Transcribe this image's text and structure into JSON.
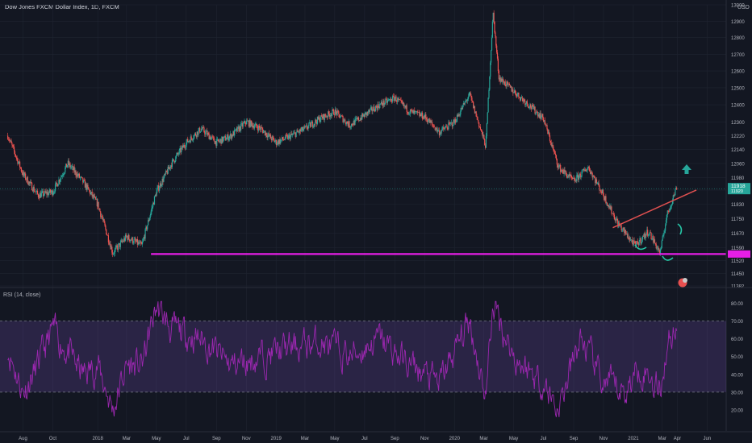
{
  "header": {
    "title": "Dow Jones FXCM Dollar Index, 1D, FXCM",
    "currency": "USD",
    "rsi_label": "RSI (14, close)"
  },
  "colors": {
    "background": "#131722",
    "grid": "#1f2431",
    "axis_text": "#b2b5be",
    "candle_up": "#26a69a",
    "candle_down": "#ef5350",
    "support_line": "#e61ee6",
    "trend_line": "#e05050",
    "rsi_line": "#9c27b0",
    "rsi_band": "rgba(126,87,194,0.22)",
    "current_price_bg": "#26a69a",
    "arrow": "#26a69a"
  },
  "chart_data": [
    {
      "type": "candlestick",
      "title": "Dow Jones FXCM Dollar Index, 1D, FXCM",
      "y_ticks": [
        13000,
        12900,
        12800,
        12700,
        12600,
        12500,
        12400,
        12300,
        12220,
        12140,
        12060,
        11980,
        11910,
        11830,
        11750,
        11670,
        11590,
        11520,
        11450,
        11382
      ],
      "ylim": [
        11382,
        13000
      ],
      "y_scale": "log",
      "x_ticks": [
        "Aug",
        "Oct",
        "2018",
        "Mar",
        "May",
        "Jul",
        "Sep",
        "Nov",
        "2019",
        "Mar",
        "May",
        "Jul",
        "Sep",
        "Nov",
        "2020",
        "Mar",
        "May",
        "Jul",
        "Sep",
        "Nov",
        "2021",
        "Mar",
        "Apr",
        "Jun"
      ],
      "path_points": [
        {
          "x": "2017-07-01",
          "close": 12220
        },
        {
          "x": "2017-08-01",
          "close": 12000
        },
        {
          "x": "2017-09-01",
          "close": 11880
        },
        {
          "x": "2017-10-01",
          "close": 11900
        },
        {
          "x": "2017-11-01",
          "close": 12060
        },
        {
          "x": "2017-12-01",
          "close": 11960
        },
        {
          "x": "2018-01-01",
          "close": 11830
        },
        {
          "x": "2018-02-01",
          "close": 11560
        },
        {
          "x": "2018-03-01",
          "close": 11650
        },
        {
          "x": "2018-04-01",
          "close": 11600
        },
        {
          "x": "2018-05-01",
          "close": 11900
        },
        {
          "x": "2018-06-01",
          "close": 12060
        },
        {
          "x": "2018-07-01",
          "close": 12180
        },
        {
          "x": "2018-08-01",
          "close": 12260
        },
        {
          "x": "2018-09-01",
          "close": 12180
        },
        {
          "x": "2018-10-01",
          "close": 12220
        },
        {
          "x": "2018-11-01",
          "close": 12300
        },
        {
          "x": "2018-12-01",
          "close": 12260
        },
        {
          "x": "2019-01-01",
          "close": 12180
        },
        {
          "x": "2019-02-01",
          "close": 12220
        },
        {
          "x": "2019-03-01",
          "close": 12260
        },
        {
          "x": "2019-04-01",
          "close": 12320
        },
        {
          "x": "2019-05-01",
          "close": 12360
        },
        {
          "x": "2019-06-01",
          "close": 12280
        },
        {
          "x": "2019-07-01",
          "close": 12340
        },
        {
          "x": "2019-08-01",
          "close": 12400
        },
        {
          "x": "2019-09-01",
          "close": 12440
        },
        {
          "x": "2019-10-01",
          "close": 12360
        },
        {
          "x": "2019-11-01",
          "close": 12330
        },
        {
          "x": "2019-12-01",
          "close": 12240
        },
        {
          "x": "2020-01-01",
          "close": 12300
        },
        {
          "x": "2020-02-01",
          "close": 12460
        },
        {
          "x": "2020-03-05",
          "close": 12160
        },
        {
          "x": "2020-03-20",
          "close": 12950
        },
        {
          "x": "2020-04-01",
          "close": 12560
        },
        {
          "x": "2020-05-01",
          "close": 12480
        },
        {
          "x": "2020-06-01",
          "close": 12400
        },
        {
          "x": "2020-07-01",
          "close": 12320
        },
        {
          "x": "2020-08-01",
          "close": 12040
        },
        {
          "x": "2020-09-01",
          "close": 11960
        },
        {
          "x": "2020-10-01",
          "close": 12040
        },
        {
          "x": "2020-11-01",
          "close": 11880
        },
        {
          "x": "2020-12-01",
          "close": 11720
        },
        {
          "x": "2021-01-05",
          "close": 11600
        },
        {
          "x": "2021-02-01",
          "close": 11680
        },
        {
          "x": "2021-02-25",
          "close": 11560
        },
        {
          "x": "2021-03-10",
          "close": 11760
        },
        {
          "x": "2021-03-31",
          "close": 11930
        }
      ],
      "current_price": {
        "value": "11918",
        "sub": "11920"
      },
      "support_level": 11555,
      "trend_line": [
        {
          "x": "2020-11-20",
          "y": 11700
        },
        {
          "x": "2021-05-10",
          "y": 11910
        }
      ],
      "annotations": [
        "left-shoulder-arc",
        "head-arc",
        "right-shoulder-arc",
        "up-arrow",
        "flag-icon"
      ]
    },
    {
      "type": "line",
      "title": "RSI (14, close)",
      "y_ticks": [
        80.0,
        70.0,
        60.0,
        50.0,
        40.0,
        30.0,
        20.0
      ],
      "y_tick_labels": [
        "80.00",
        "70.00",
        "60.00",
        "50.00",
        "40.00",
        "30.00",
        "20.00"
      ],
      "ylim": [
        15,
        82
      ],
      "bands": [
        30,
        70
      ],
      "path_points": [
        {
          "x": "2017-07-01",
          "y": 55
        },
        {
          "x": "2017-08-01",
          "y": 30
        },
        {
          "x": "2017-09-01",
          "y": 45
        },
        {
          "x": "2017-10-01",
          "y": 65
        },
        {
          "x": "2017-12-01",
          "y": 40
        },
        {
          "x": "2018-01-01",
          "y": 45
        },
        {
          "x": "2018-02-01",
          "y": 20
        },
        {
          "x": "2018-03-01",
          "y": 45
        },
        {
          "x": "2018-04-01",
          "y": 45
        },
        {
          "x": "2018-05-01",
          "y": 78
        },
        {
          "x": "2018-06-01",
          "y": 65
        },
        {
          "x": "2018-08-01",
          "y": 60
        },
        {
          "x": "2018-10-01",
          "y": 45
        },
        {
          "x": "2018-12-01",
          "y": 50
        },
        {
          "x": "2019-02-01",
          "y": 55
        },
        {
          "x": "2019-04-01",
          "y": 58
        },
        {
          "x": "2019-06-01",
          "y": 50
        },
        {
          "x": "2019-08-01",
          "y": 60
        },
        {
          "x": "2019-10-01",
          "y": 45
        },
        {
          "x": "2019-12-01",
          "y": 35
        },
        {
          "x": "2020-02-01",
          "y": 70
        },
        {
          "x": "2020-03-05",
          "y": 28
        },
        {
          "x": "2020-03-20",
          "y": 80
        },
        {
          "x": "2020-05-01",
          "y": 50
        },
        {
          "x": "2020-07-01",
          "y": 35
        },
        {
          "x": "2020-08-01",
          "y": 20
        },
        {
          "x": "2020-09-15",
          "y": 60
        },
        {
          "x": "2020-11-01",
          "y": 35
        },
        {
          "x": "2020-12-15",
          "y": 30
        },
        {
          "x": "2021-01-15",
          "y": 45
        },
        {
          "x": "2021-02-25",
          "y": 32
        },
        {
          "x": "2021-03-10",
          "y": 55
        },
        {
          "x": "2021-03-31",
          "y": 70
        }
      ]
    }
  ]
}
